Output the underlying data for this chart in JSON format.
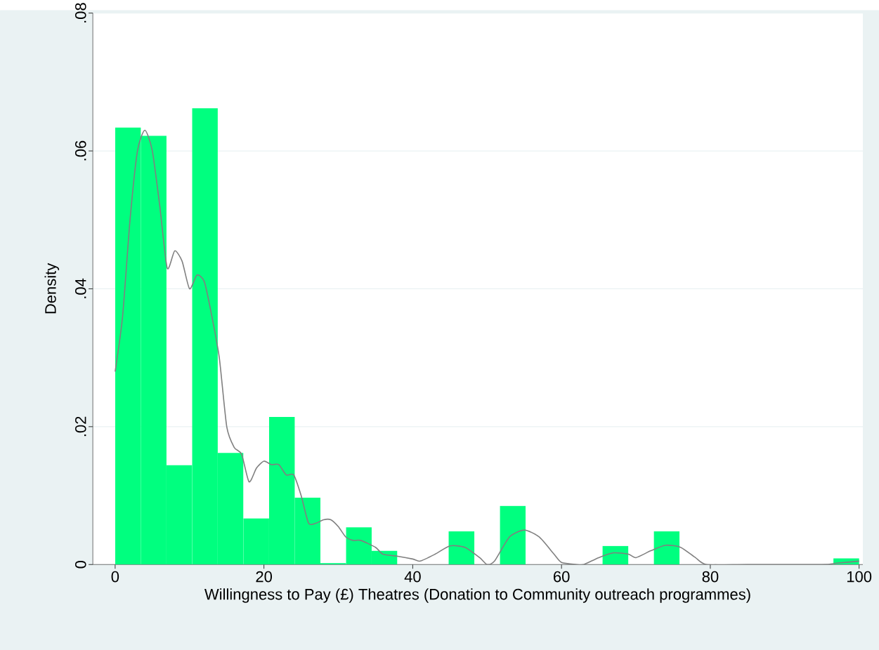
{
  "chart_data": {
    "type": "histogram",
    "xlabel": "Willingness to Pay (£) Theatres (Donation to Community outreach programmes)",
    "ylabel": "Density",
    "bins": [
      0,
      3.45,
      6.9,
      10.34,
      13.79,
      17.24,
      20.69,
      24.14,
      27.59,
      31.03,
      34.48,
      37.93,
      41.38,
      44.83,
      48.28,
      51.72,
      55.17,
      58.62,
      62.07,
      65.52,
      68.97,
      72.41,
      75.86,
      79.31,
      82.76,
      86.21,
      89.66,
      93.1,
      96.55,
      100
    ],
    "values": [
      0.0634,
      0.0622,
      0.0144,
      0.0662,
      0.0162,
      0.0067,
      0.0214,
      0.0097,
      0.0002,
      0.0054,
      0.002,
      0,
      0,
      0.0048,
      0,
      0.0085,
      0,
      0,
      0,
      0.0027,
      0,
      0.0048,
      0,
      0,
      0,
      0,
      0,
      0,
      0.0009
    ],
    "color": "#00ff7f",
    "series": [
      {
        "type": "line",
        "color": "#808080",
        "x": [
          0,
          1,
          2,
          3,
          4,
          5,
          6,
          7,
          8,
          9,
          10,
          11,
          12,
          13,
          14,
          15,
          16,
          17,
          18,
          19,
          20,
          21,
          22,
          23,
          24,
          25,
          26,
          27,
          28,
          29,
          30,
          31,
          32,
          33,
          35,
          36,
          38,
          40,
          41,
          43,
          45,
          47,
          49,
          50,
          51,
          53,
          55,
          57,
          59,
          60,
          62,
          63,
          65,
          67,
          69,
          70,
          72,
          74,
          76,
          78,
          79.5,
          85,
          95,
          97,
          100
        ],
        "values": [
          0.028,
          0.036,
          0.05,
          0.06,
          0.063,
          0.06,
          0.052,
          0.043,
          0.0455,
          0.044,
          0.04,
          0.042,
          0.041,
          0.036,
          0.03,
          0.02,
          0.017,
          0.016,
          0.012,
          0.014,
          0.015,
          0.0145,
          0.0145,
          0.013,
          0.013,
          0.01,
          0.006,
          0.006,
          0.0065,
          0.0065,
          0.0055,
          0.004,
          0.0035,
          0.0035,
          0.0025,
          0.0015,
          0.0012,
          0.0008,
          0.0005,
          0.0015,
          0.0027,
          0.0025,
          0.001,
          0,
          0.0005,
          0.004,
          0.005,
          0.004,
          0.0015,
          0.0003,
          0,
          0,
          0.001,
          0.0017,
          0.0015,
          0.001,
          0.002,
          0.0028,
          0.0025,
          0.001,
          0,
          0,
          0,
          0.0002,
          0.0005
        ]
      }
    ],
    "xlim": [
      -3,
      100.5
    ],
    "xticks": [
      0,
      20,
      40,
      60,
      80,
      100
    ],
    "ylim": [
      0,
      0.08
    ],
    "yticks": [
      {
        "value": 0,
        "label": "0"
      },
      {
        "value": 0.02,
        "label": ".02"
      },
      {
        "value": 0.04,
        "label": ".04"
      },
      {
        "value": 0.06,
        "label": ".06"
      },
      {
        "value": 0.08,
        "label": ".08"
      }
    ],
    "grid": "y"
  }
}
